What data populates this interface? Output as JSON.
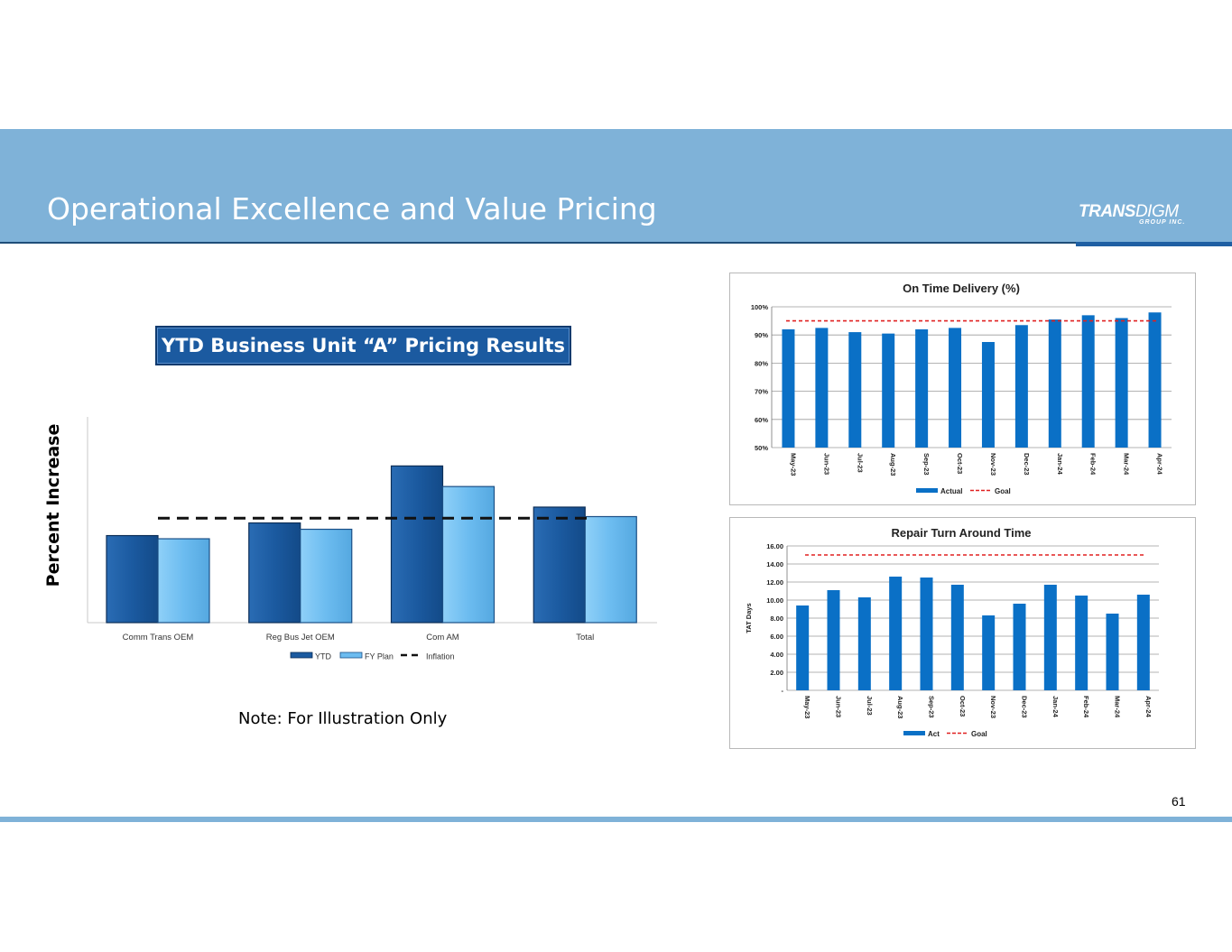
{
  "slide": {
    "title": "Operational Excellence and Value Pricing",
    "page_number": "61",
    "note": "Note: For Illustration Only",
    "logo_main_bold": "TRANS",
    "logo_main_thin": "DIGM",
    "logo_sub": "GROUP INC."
  },
  "colors": {
    "header": "#7fb2d8",
    "dark_blue": "#1b5aa0",
    "light_blue": "#6cbcf0",
    "bar_blue": "#0a70c6",
    "goal_red": "#e02020"
  },
  "chart_data": [
    {
      "type": "bar",
      "title": "YTD Business Unit “A” Pricing Results",
      "xlabel": "",
      "ylabel": "Percent Increase",
      "categories": [
        "Comm Trans OEM",
        "Reg Bus Jet OEM",
        "Com AM",
        "Total"
      ],
      "series": [
        {
          "name": "YTD",
          "values": [
            5.5,
            6.3,
            9.9,
            7.3
          ]
        },
        {
          "name": "FY Plan",
          "values": [
            5.3,
            5.9,
            8.6,
            6.7
          ]
        }
      ],
      "reference_line": {
        "name": "Inflation",
        "value": 6.6
      },
      "ylim": [
        0,
        13
      ],
      "legend": [
        "YTD",
        "FY Plan",
        "Inflation"
      ],
      "legend_position": "bottom"
    },
    {
      "type": "bar",
      "title": "On Time Delivery (%)",
      "categories": [
        "May-23",
        "Jun-23",
        "Jul-23",
        "Aug-23",
        "Sep-23",
        "Oct-23",
        "Nov-23",
        "Dec-23",
        "Jan-24",
        "Feb-24",
        "Mar-24",
        "Apr-24"
      ],
      "series": [
        {
          "name": "Actual",
          "values": [
            92,
            92.5,
            91,
            90.5,
            92,
            92.5,
            87.5,
            93.5,
            95.5,
            97,
            96,
            98
          ]
        }
      ],
      "goal": {
        "name": "Goal",
        "value": 95
      },
      "ylim": [
        50,
        100
      ],
      "yticks": [
        "50%",
        "60%",
        "70%",
        "80%",
        "90%",
        "100%"
      ],
      "legend": [
        "Actual",
        "Goal"
      ],
      "legend_position": "bottom"
    },
    {
      "type": "bar",
      "title": "Repair Turn Around Time",
      "ylabel": "TAT Days",
      "categories": [
        "May-23",
        "Jun-23",
        "Jul-23",
        "Aug-23",
        "Sep-23",
        "Oct-23",
        "Nov-23",
        "Dec-23",
        "Jan-24",
        "Feb-24",
        "Mar-24",
        "Apr-24"
      ],
      "series": [
        {
          "name": "Act",
          "values": [
            9.4,
            11.1,
            10.3,
            12.6,
            12.5,
            11.7,
            8.3,
            9.6,
            11.7,
            10.5,
            8.5,
            10.6
          ]
        }
      ],
      "goal": {
        "name": "Goal",
        "value": 15
      },
      "ylim": [
        0,
        16
      ],
      "yticks": [
        "-",
        "2.00",
        "4.00",
        "6.00",
        "8.00",
        "10.00",
        "12.00",
        "14.00",
        "16.00"
      ],
      "legend": [
        "Act",
        "Goal"
      ],
      "legend_position": "bottom"
    }
  ]
}
